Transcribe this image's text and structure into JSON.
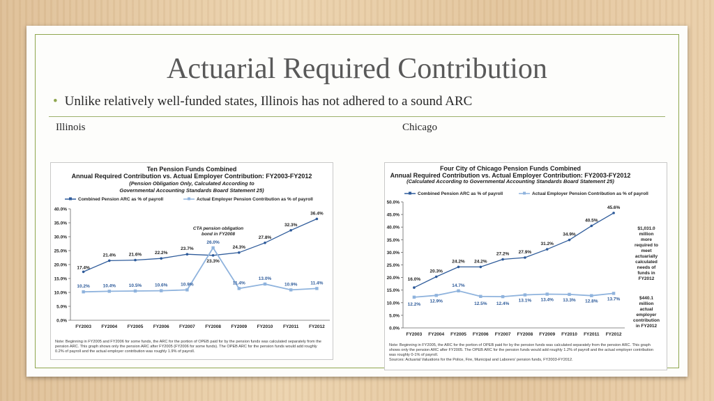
{
  "slide": {
    "title": "Actuarial Required Contribution",
    "bullet": "Unlike relatively well-funded states, Illinois has not adhered to a sound ARC",
    "left_label": "Illinois",
    "right_label": "Chicago"
  },
  "colors": {
    "arc_line": "#2e5b9a",
    "actual_line": "#8fb3dd",
    "accent": "#8fa64f"
  },
  "chart_data": [
    {
      "type": "line",
      "title_lines": [
        "Ten Pension Funds Combined",
        "Annual Required Contribution vs. Actual Employer Contribution: FY2003-FY2012"
      ],
      "subtitle_lines": [
        "(Pension Obligation Only, Calculated According to",
        "Governmental Accounting Standards Board Statement 25)"
      ],
      "x": [
        "FY2003",
        "FY2004",
        "FY2005",
        "FY2006",
        "FY2007",
        "FY2008",
        "FY2009",
        "FY2010",
        "FY2011",
        "FY2012"
      ],
      "series": [
        {
          "name": "Combined Pension ARC as % of payroll",
          "values": [
            17.4,
            21.4,
            21.6,
            22.2,
            23.7,
            23.3,
            24.3,
            27.8,
            32.3,
            36.4
          ],
          "labels": [
            "17.4%",
            "21.4%",
            "21.6%",
            "22.2%",
            "23.7%",
            "23.3%",
            "24.3%",
            "27.8%",
            "32.3%",
            "36.4%"
          ]
        },
        {
          "name": "Actual Employer Pension Contribution as % of payroll",
          "values": [
            10.2,
            10.4,
            10.5,
            10.6,
            10.9,
            26.0,
            11.4,
            13.0,
            10.9,
            11.4
          ],
          "labels": [
            "10.2%",
            "10.4%",
            "10.5%",
            "10.6%",
            "10.9%",
            "26.0%",
            "11.4%",
            "13.0%",
            "10.9%",
            "11.4%"
          ]
        }
      ],
      "ylim": [
        0,
        40
      ],
      "yticks": [
        "0.0%",
        "5.0%",
        "10.0%",
        "15.0%",
        "20.0%",
        "25.0%",
        "30.0%",
        "35.0%",
        "40.0%"
      ],
      "annotation_lines": [
        "CTA pension obligation",
        "bond in FY2008"
      ],
      "note_lines": [
        "Note: Beginning in FY2005 and FY2006 for some funds, the ARC for the portion of OPEB paid for by the pension funds was calculated separately from the",
        "pension ARC.  This graph shows only the pension ARC after FY2005 (FY2006 for some funds). The OPEB ARC for the pension funds would add roughly",
        "0.2% of payroll and the actual employer contribution was roughly 1.9% of payroll."
      ],
      "legend": "top",
      "grid": false
    },
    {
      "type": "line",
      "title_lines": [
        "Four City of Chicago Pension Funds Combined",
        "Annual Required Contribution vs. Actual Employer Contribution: FY2003-FY2012"
      ],
      "subtitle_lines": [
        "(Calculated According to Governmental Accounting Standards Board Statement 25)"
      ],
      "x": [
        "FY2003",
        "FY2004",
        "FY2005",
        "FY2006",
        "FY2007",
        "FY2008",
        "FY2009",
        "FY2010",
        "FY2011",
        "FY2012"
      ],
      "series": [
        {
          "name": "Combined Pension ARC as % of payroll",
          "values": [
            16.0,
            20.3,
            24.2,
            24.2,
            27.2,
            27.9,
            31.2,
            34.9,
            40.5,
            45.6
          ],
          "labels": [
            "16.0%",
            "20.3%",
            "24.2%",
            "24.2%",
            "27.2%",
            "27.9%",
            "31.2%",
            "34.9%",
            "40.5%",
            "45.6%"
          ]
        },
        {
          "name": "Actual Employer Pension Contribution as % of payroll",
          "values": [
            12.2,
            12.9,
            14.7,
            12.5,
            12.4,
            13.1,
            13.4,
            13.3,
            12.8,
            13.7
          ],
          "labels": [
            "12.2%",
            "12.9%",
            "14.7%",
            "12.5%",
            "12.4%",
            "13.1%",
            "13.4%",
            "13.3%",
            "12.8%",
            "13.7%"
          ]
        }
      ],
      "ylim": [
        0,
        50
      ],
      "yticks": [
        "0.0%",
        "5.0%",
        "10.0%",
        "15.0%",
        "20.0%",
        "25.0%",
        "30.0%",
        "35.0%",
        "40.0%",
        "45.0%",
        "50.0%"
      ],
      "side_annotations": [
        [
          "$1,031.0",
          "million",
          "more",
          "required to",
          "meet",
          "actuarially",
          "calculated",
          "needs of",
          "funds in",
          "FY2012"
        ],
        [
          "$440.1",
          "million",
          "actual",
          "employer",
          "contribution",
          "in FY2012"
        ]
      ],
      "note_lines": [
        "Note: Beginning in FY2005, the ARC for the portion of OPEB paid for by the pension funds was calculated separately from the pension ARC.  This graph",
        "shows only the pension ARC after FY2005. The OPEB ARC for the pension funds would add roughly 1.2% of payroll and the actual employer contribution",
        "was roughly 0-1% of payroll.",
        "Sources: Actuarial Valuations for the Police, Fire, Municipal and Laborers' pension funds, FY2003-FY2012."
      ],
      "legend": "top",
      "grid": false
    }
  ]
}
